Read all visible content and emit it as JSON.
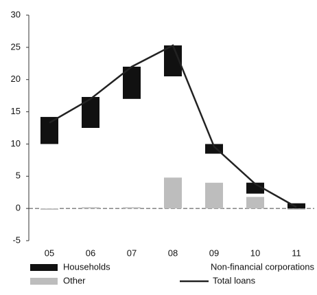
{
  "chart_data": {
    "type": "bar",
    "categories": [
      "05",
      "06",
      "07",
      "08",
      "09",
      "10",
      "11"
    ],
    "series": [
      {
        "name": "Other",
        "color": "#bdbdbd",
        "values": [
          -0.2,
          0.2,
          0.2,
          4.8,
          4,
          1.8,
          -0.2
        ]
      },
      {
        "name": "Non-financial corporations",
        "color": "#ffffff",
        "values": [
          10,
          12.3,
          16.8,
          15.7,
          4.5,
          0.5,
          0
        ]
      },
      {
        "name": "Households",
        "color": "#111111",
        "values": [
          4.2,
          4.8,
          5,
          4.8,
          1.5,
          1.7,
          0.8
        ]
      },
      {
        "name": "Total loans",
        "color": "#222222",
        "line": true,
        "values": [
          13.3,
          17,
          22,
          25.3,
          9.6,
          3.8,
          0.2
        ]
      }
    ],
    "ylim": [
      -5,
      30
    ],
    "yticks": [
      -5,
      0,
      5,
      10,
      15,
      20,
      25,
      30
    ]
  }
}
